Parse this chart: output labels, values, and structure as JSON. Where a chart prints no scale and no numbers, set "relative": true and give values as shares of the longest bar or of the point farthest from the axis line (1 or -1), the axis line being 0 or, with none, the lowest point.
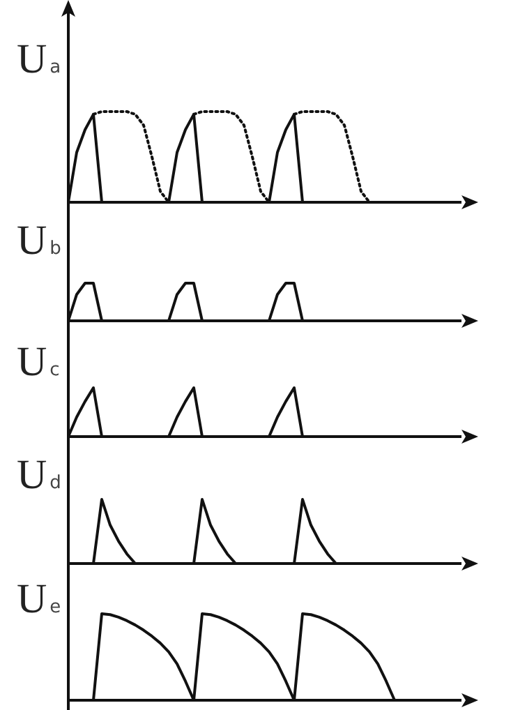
{
  "chart_data": [
    {
      "type": "line",
      "ylabel": "U$_{a}$",
      "relative": true,
      "tick_labels": false,
      "categories": [
        null,
        null,
        null,
        null,
        null,
        null,
        null,
        null,
        null,
        null,
        null,
        null,
        null,
        null,
        null,
        null,
        null,
        null,
        null,
        null,
        null,
        null,
        null,
        null,
        null,
        null,
        null,
        null,
        null,
        null,
        null,
        null,
        null,
        null,
        null,
        null,
        null,
        null,
        null,
        null,
        null,
        null,
        null,
        null,
        null,
        null,
        null
      ],
      "series": [
        {
          "color": "#111111",
          "line_style": "solid",
          "values": [
            0,
            0.55,
            0.8,
            0.97,
            0,
            0,
            0,
            0,
            0,
            0,
            0,
            0,
            0,
            0.55,
            0.8,
            0.97,
            0,
            0,
            0,
            0,
            0,
            0,
            0,
            0,
            0,
            0.55,
            0.8,
            0.97,
            0,
            0,
            0,
            0,
            0,
            0,
            0,
            0,
            0,
            0,
            0,
            0,
            0,
            0,
            0,
            0,
            0,
            0,
            0
          ]
        },
        {
          "color": "#111111",
          "line_style": "dotted",
          "values": [
            null,
            null,
            null,
            0.97,
            1,
            1,
            1,
            1,
            0.97,
            0.85,
            0.5,
            0.12,
            0,
            null,
            null,
            0.97,
            1,
            1,
            1,
            1,
            0.97,
            0.85,
            0.5,
            0.12,
            0,
            null,
            null,
            0.97,
            1,
            1,
            1,
            1,
            0.97,
            0.85,
            0.5,
            0.12,
            0,
            null,
            null,
            null,
            null,
            null,
            null,
            null,
            null,
            null,
            null
          ]
        }
      ]
    },
    {
      "type": "line",
      "ylabel": "U$_{b}$",
      "relative": true,
      "tick_labels": false,
      "categories": [
        null,
        null,
        null,
        null,
        null,
        null,
        null,
        null,
        null,
        null,
        null,
        null,
        null,
        null,
        null,
        null,
        null,
        null,
        null,
        null,
        null,
        null,
        null,
        null,
        null,
        null,
        null,
        null,
        null,
        null,
        null,
        null,
        null,
        null,
        null,
        null,
        null,
        null,
        null,
        null,
        null,
        null,
        null,
        null,
        null,
        null,
        null
      ],
      "series": [
        {
          "color": "#111111",
          "line_style": "solid",
          "values": [
            0,
            0.7,
            1,
            1,
            0,
            0,
            0,
            0,
            0,
            0,
            0,
            0,
            0,
            0.7,
            1,
            1,
            0,
            0,
            0,
            0,
            0,
            0,
            0,
            0,
            0,
            0.7,
            1,
            1,
            0,
            0,
            0,
            0,
            0,
            0,
            0,
            0,
            0,
            0,
            0,
            0,
            0,
            0,
            0,
            0,
            0,
            0,
            0
          ]
        }
      ]
    },
    {
      "type": "line",
      "ylabel": "U$_{c}$",
      "relative": true,
      "tick_labels": false,
      "categories": [
        null,
        null,
        null,
        null,
        null,
        null,
        null,
        null,
        null,
        null,
        null,
        null,
        null,
        null,
        null,
        null,
        null,
        null,
        null,
        null,
        null,
        null,
        null,
        null,
        null,
        null,
        null,
        null,
        null,
        null,
        null,
        null,
        null,
        null,
        null,
        null,
        null,
        null,
        null,
        null,
        null,
        null,
        null,
        null,
        null,
        null,
        null
      ],
      "series": [
        {
          "color": "#111111",
          "line_style": "solid",
          "values": [
            0,
            0.4,
            0.72,
            1,
            0,
            0,
            0,
            0,
            0,
            0,
            0,
            0,
            0,
            0.4,
            0.72,
            1,
            0,
            0,
            0,
            0,
            0,
            0,
            0,
            0,
            0,
            0.4,
            0.72,
            1,
            0,
            0,
            0,
            0,
            0,
            0,
            0,
            0,
            0,
            0,
            0,
            0,
            0,
            0,
            0,
            0,
            0,
            0,
            0
          ]
        }
      ]
    },
    {
      "type": "line",
      "ylabel": "U$_{d}$",
      "relative": true,
      "tick_labels": false,
      "categories": [
        null,
        null,
        null,
        null,
        null,
        null,
        null,
        null,
        null,
        null,
        null,
        null,
        null,
        null,
        null,
        null,
        null,
        null,
        null,
        null,
        null,
        null,
        null,
        null,
        null,
        null,
        null,
        null,
        null,
        null,
        null,
        null,
        null,
        null,
        null,
        null,
        null,
        null,
        null,
        null,
        null,
        null,
        null,
        null,
        null,
        null,
        null
      ],
      "series": [
        {
          "color": "#111111",
          "line_style": "solid",
          "values": [
            0,
            0,
            0,
            0,
            1,
            0.6,
            0.35,
            0.15,
            0,
            0,
            0,
            0,
            0,
            0,
            0,
            0,
            1,
            0.6,
            0.35,
            0.15,
            0,
            0,
            0,
            0,
            0,
            0,
            0,
            0,
            1,
            0.6,
            0.35,
            0.15,
            0,
            0,
            0,
            0,
            0,
            0,
            0,
            0,
            0,
            0,
            0,
            0,
            0,
            0,
            0
          ]
        }
      ]
    },
    {
      "type": "line",
      "ylabel": "U$_{e}$",
      "relative": true,
      "tick_labels": false,
      "categories": [
        null,
        null,
        null,
        null,
        null,
        null,
        null,
        null,
        null,
        null,
        null,
        null,
        null,
        null,
        null,
        null,
        null,
        null,
        null,
        null,
        null,
        null,
        null,
        null,
        null,
        null,
        null,
        null,
        null,
        null,
        null,
        null,
        null,
        null,
        null,
        null,
        null,
        null,
        null,
        null,
        null,
        null,
        null,
        null,
        null,
        null,
        null
      ],
      "series": [
        {
          "color": "#111111",
          "line_style": "solid",
          "values": [
            0,
            0,
            0,
            0,
            1,
            0.99,
            0.96,
            0.92,
            0.87,
            0.81,
            0.74,
            0.66,
            0.56,
            0.42,
            0.22,
            0,
            1,
            0.99,
            0.96,
            0.92,
            0.87,
            0.81,
            0.74,
            0.66,
            0.56,
            0.42,
            0.22,
            0,
            1,
            0.99,
            0.96,
            0.92,
            0.87,
            0.81,
            0.74,
            0.66,
            0.56,
            0.42,
            0.22,
            0,
            0,
            0,
            0,
            0,
            0,
            0,
            0
          ]
        }
      ]
    }
  ]
}
